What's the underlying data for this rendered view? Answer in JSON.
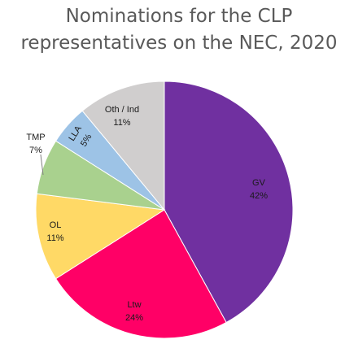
{
  "chart_data": {
    "type": "pie",
    "title_line1": "Nominations for the CLP",
    "title_line2": "representatives on the NEC, 2020",
    "slices": [
      {
        "label": "GV",
        "value": 42,
        "display": "42%",
        "color": "#7030a0"
      },
      {
        "label": "Ltw",
        "value": 24,
        "display": "24%",
        "color": "#ff0066"
      },
      {
        "label": "OL",
        "value": 11,
        "display": "11%",
        "color": "#ffd966"
      },
      {
        "label": "TMP",
        "value": 7,
        "display": "7%",
        "color": "#a9d18e"
      },
      {
        "label": "LLA",
        "value": 5,
        "display": "5%",
        "color": "#9dc3e6"
      },
      {
        "label": "Oth / Ind",
        "value": 11,
        "display": "11%",
        "color": "#d0cece"
      }
    ]
  }
}
